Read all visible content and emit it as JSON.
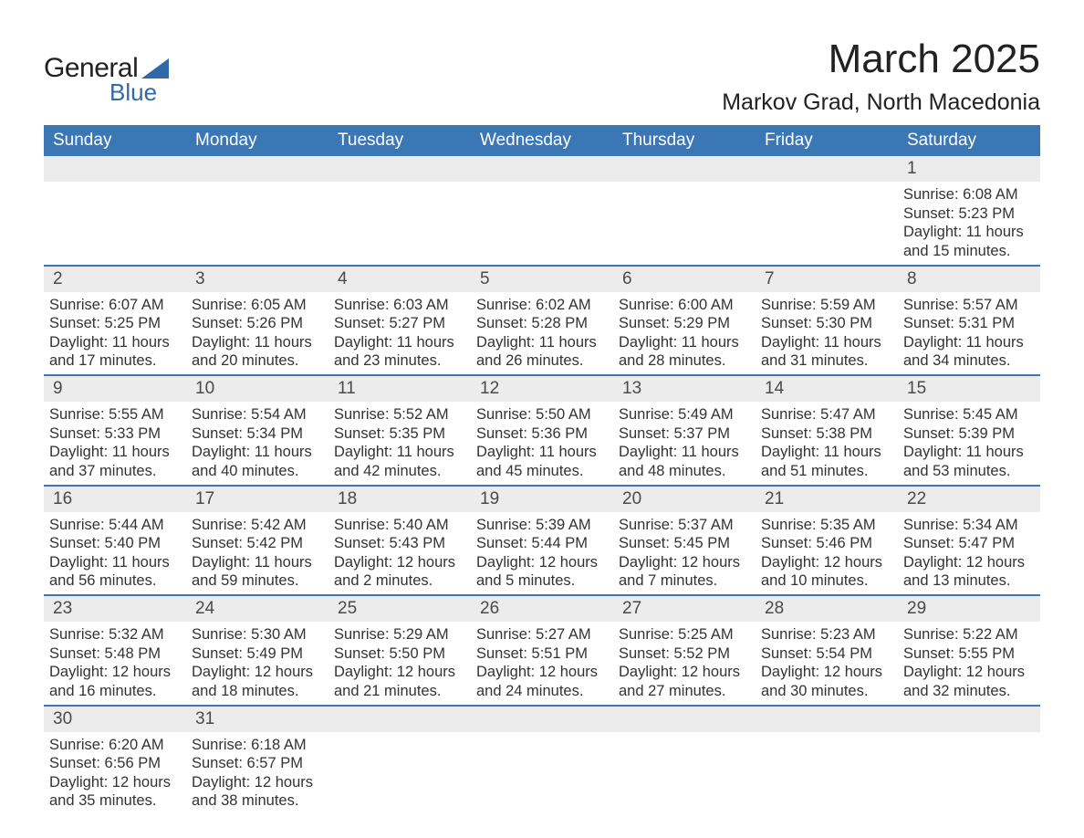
{
  "brand": {
    "text_general": "General",
    "text_blue": "Blue",
    "triangle_color": "#2f6aa8"
  },
  "title": {
    "month": "March 2025",
    "location": "Markov Grad, North Macedonia"
  },
  "colors": {
    "header_bg": "#3b77b5",
    "header_text": "#ffffff",
    "daynum_bg": "#ececec",
    "row_border": "#3b77b5",
    "text": "#333333"
  },
  "fonts": {
    "month_title_size_pt": 33,
    "location_size_pt": 19,
    "header_size_pt": 14,
    "daynum_size_pt": 14,
    "body_size_pt": 12
  },
  "day_headers": [
    "Sunday",
    "Monday",
    "Tuesday",
    "Wednesday",
    "Thursday",
    "Friday",
    "Saturday"
  ],
  "weeks": [
    [
      {
        "n": "",
        "sunrise": "",
        "sunset": "",
        "daylight": ""
      },
      {
        "n": "",
        "sunrise": "",
        "sunset": "",
        "daylight": ""
      },
      {
        "n": "",
        "sunrise": "",
        "sunset": "",
        "daylight": ""
      },
      {
        "n": "",
        "sunrise": "",
        "sunset": "",
        "daylight": ""
      },
      {
        "n": "",
        "sunrise": "",
        "sunset": "",
        "daylight": ""
      },
      {
        "n": "",
        "sunrise": "",
        "sunset": "",
        "daylight": ""
      },
      {
        "n": "1",
        "sunrise": "Sunrise: 6:08 AM",
        "sunset": "Sunset: 5:23 PM",
        "daylight": "Daylight: 11 hours and 15 minutes."
      }
    ],
    [
      {
        "n": "2",
        "sunrise": "Sunrise: 6:07 AM",
        "sunset": "Sunset: 5:25 PM",
        "daylight": "Daylight: 11 hours and 17 minutes."
      },
      {
        "n": "3",
        "sunrise": "Sunrise: 6:05 AM",
        "sunset": "Sunset: 5:26 PM",
        "daylight": "Daylight: 11 hours and 20 minutes."
      },
      {
        "n": "4",
        "sunrise": "Sunrise: 6:03 AM",
        "sunset": "Sunset: 5:27 PM",
        "daylight": "Daylight: 11 hours and 23 minutes."
      },
      {
        "n": "5",
        "sunrise": "Sunrise: 6:02 AM",
        "sunset": "Sunset: 5:28 PM",
        "daylight": "Daylight: 11 hours and 26 minutes."
      },
      {
        "n": "6",
        "sunrise": "Sunrise: 6:00 AM",
        "sunset": "Sunset: 5:29 PM",
        "daylight": "Daylight: 11 hours and 28 minutes."
      },
      {
        "n": "7",
        "sunrise": "Sunrise: 5:59 AM",
        "sunset": "Sunset: 5:30 PM",
        "daylight": "Daylight: 11 hours and 31 minutes."
      },
      {
        "n": "8",
        "sunrise": "Sunrise: 5:57 AM",
        "sunset": "Sunset: 5:31 PM",
        "daylight": "Daylight: 11 hours and 34 minutes."
      }
    ],
    [
      {
        "n": "9",
        "sunrise": "Sunrise: 5:55 AM",
        "sunset": "Sunset: 5:33 PM",
        "daylight": "Daylight: 11 hours and 37 minutes."
      },
      {
        "n": "10",
        "sunrise": "Sunrise: 5:54 AM",
        "sunset": "Sunset: 5:34 PM",
        "daylight": "Daylight: 11 hours and 40 minutes."
      },
      {
        "n": "11",
        "sunrise": "Sunrise: 5:52 AM",
        "sunset": "Sunset: 5:35 PM",
        "daylight": "Daylight: 11 hours and 42 minutes."
      },
      {
        "n": "12",
        "sunrise": "Sunrise: 5:50 AM",
        "sunset": "Sunset: 5:36 PM",
        "daylight": "Daylight: 11 hours and 45 minutes."
      },
      {
        "n": "13",
        "sunrise": "Sunrise: 5:49 AM",
        "sunset": "Sunset: 5:37 PM",
        "daylight": "Daylight: 11 hours and 48 minutes."
      },
      {
        "n": "14",
        "sunrise": "Sunrise: 5:47 AM",
        "sunset": "Sunset: 5:38 PM",
        "daylight": "Daylight: 11 hours and 51 minutes."
      },
      {
        "n": "15",
        "sunrise": "Sunrise: 5:45 AM",
        "sunset": "Sunset: 5:39 PM",
        "daylight": "Daylight: 11 hours and 53 minutes."
      }
    ],
    [
      {
        "n": "16",
        "sunrise": "Sunrise: 5:44 AM",
        "sunset": "Sunset: 5:40 PM",
        "daylight": "Daylight: 11 hours and 56 minutes."
      },
      {
        "n": "17",
        "sunrise": "Sunrise: 5:42 AM",
        "sunset": "Sunset: 5:42 PM",
        "daylight": "Daylight: 11 hours and 59 minutes."
      },
      {
        "n": "18",
        "sunrise": "Sunrise: 5:40 AM",
        "sunset": "Sunset: 5:43 PM",
        "daylight": "Daylight: 12 hours and 2 minutes."
      },
      {
        "n": "19",
        "sunrise": "Sunrise: 5:39 AM",
        "sunset": "Sunset: 5:44 PM",
        "daylight": "Daylight: 12 hours and 5 minutes."
      },
      {
        "n": "20",
        "sunrise": "Sunrise: 5:37 AM",
        "sunset": "Sunset: 5:45 PM",
        "daylight": "Daylight: 12 hours and 7 minutes."
      },
      {
        "n": "21",
        "sunrise": "Sunrise: 5:35 AM",
        "sunset": "Sunset: 5:46 PM",
        "daylight": "Daylight: 12 hours and 10 minutes."
      },
      {
        "n": "22",
        "sunrise": "Sunrise: 5:34 AM",
        "sunset": "Sunset: 5:47 PM",
        "daylight": "Daylight: 12 hours and 13 minutes."
      }
    ],
    [
      {
        "n": "23",
        "sunrise": "Sunrise: 5:32 AM",
        "sunset": "Sunset: 5:48 PM",
        "daylight": "Daylight: 12 hours and 16 minutes."
      },
      {
        "n": "24",
        "sunrise": "Sunrise: 5:30 AM",
        "sunset": "Sunset: 5:49 PM",
        "daylight": "Daylight: 12 hours and 18 minutes."
      },
      {
        "n": "25",
        "sunrise": "Sunrise: 5:29 AM",
        "sunset": "Sunset: 5:50 PM",
        "daylight": "Daylight: 12 hours and 21 minutes."
      },
      {
        "n": "26",
        "sunrise": "Sunrise: 5:27 AM",
        "sunset": "Sunset: 5:51 PM",
        "daylight": "Daylight: 12 hours and 24 minutes."
      },
      {
        "n": "27",
        "sunrise": "Sunrise: 5:25 AM",
        "sunset": "Sunset: 5:52 PM",
        "daylight": "Daylight: 12 hours and 27 minutes."
      },
      {
        "n": "28",
        "sunrise": "Sunrise: 5:23 AM",
        "sunset": "Sunset: 5:54 PM",
        "daylight": "Daylight: 12 hours and 30 minutes."
      },
      {
        "n": "29",
        "sunrise": "Sunrise: 5:22 AM",
        "sunset": "Sunset: 5:55 PM",
        "daylight": "Daylight: 12 hours and 32 minutes."
      }
    ],
    [
      {
        "n": "30",
        "sunrise": "Sunrise: 6:20 AM",
        "sunset": "Sunset: 6:56 PM",
        "daylight": "Daylight: 12 hours and 35 minutes."
      },
      {
        "n": "31",
        "sunrise": "Sunrise: 6:18 AM",
        "sunset": "Sunset: 6:57 PM",
        "daylight": "Daylight: 12 hours and 38 minutes."
      },
      {
        "n": "",
        "sunrise": "",
        "sunset": "",
        "daylight": ""
      },
      {
        "n": "",
        "sunrise": "",
        "sunset": "",
        "daylight": ""
      },
      {
        "n": "",
        "sunrise": "",
        "sunset": "",
        "daylight": ""
      },
      {
        "n": "",
        "sunrise": "",
        "sunset": "",
        "daylight": ""
      },
      {
        "n": "",
        "sunrise": "",
        "sunset": "",
        "daylight": ""
      }
    ]
  ]
}
